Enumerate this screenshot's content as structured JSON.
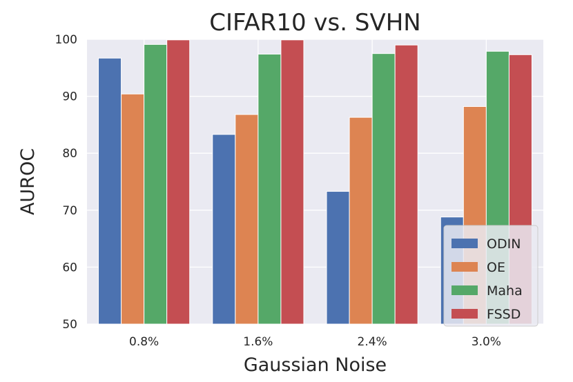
{
  "chart_data": {
    "type": "bar",
    "title": "CIFAR10 vs. SVHN",
    "xlabel": "Gaussian Noise",
    "ylabel": "AUROC",
    "ylim": [
      50,
      100
    ],
    "yticks": [
      50,
      60,
      70,
      80,
      90,
      100
    ],
    "grid": true,
    "legend_position": "bottom-right",
    "categories": [
      "0.8%",
      "1.6%",
      "2.4%",
      "3.0%"
    ],
    "series": [
      {
        "name": "ODIN",
        "color": "#4c72b0",
        "values": [
          96.7,
          83.3,
          73.3,
          68.8
        ]
      },
      {
        "name": "OE",
        "color": "#dd8452",
        "values": [
          90.4,
          86.8,
          86.3,
          88.2
        ]
      },
      {
        "name": "Maha",
        "color": "#55a868",
        "values": [
          99.1,
          97.4,
          97.5,
          97.9
        ]
      },
      {
        "name": "FSSD",
        "color": "#c44e52",
        "values": [
          99.9,
          99.9,
          99.0,
          97.3
        ]
      }
    ]
  },
  "colors": {
    "plot_background": "#eaeaf2",
    "grid": "#ffffff"
  }
}
